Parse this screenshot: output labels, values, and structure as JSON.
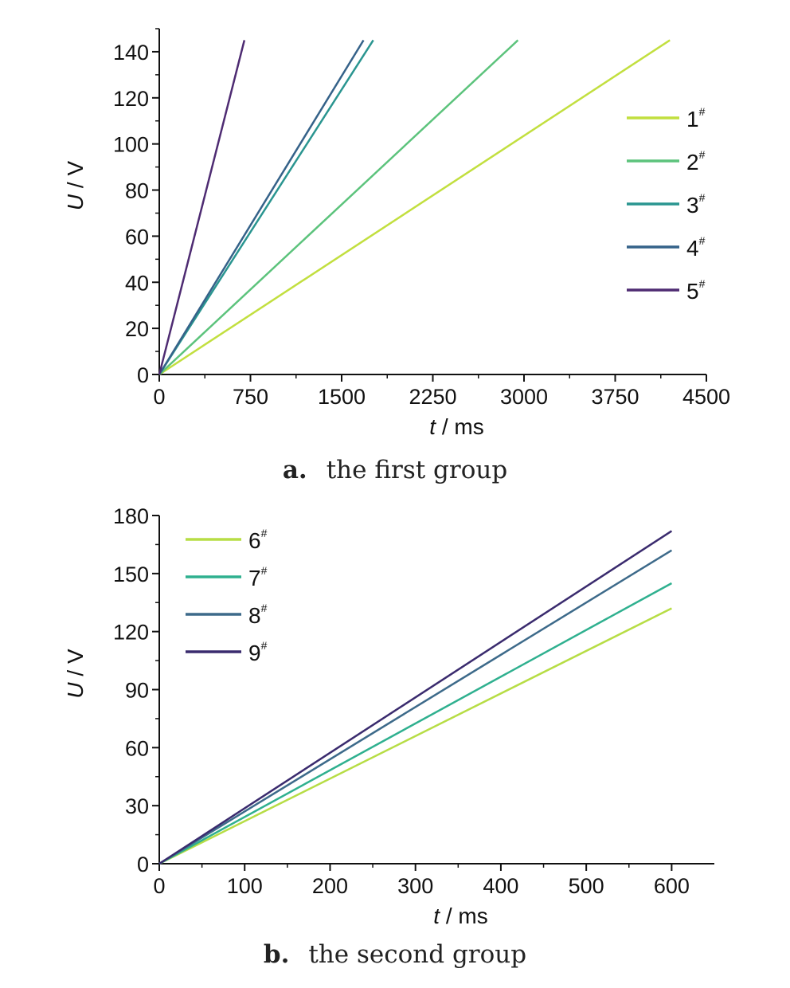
{
  "charts": [
    {
      "label": "a.",
      "caption": "the first group",
      "chart_data": {
        "type": "line",
        "xlabel_var": "t",
        "xlabel_unit": " / ms",
        "ylabel_var": "U",
        "ylabel_unit": " / V",
        "xlim": [
          0,
          4500
        ],
        "ylim": [
          0,
          150
        ],
        "xticks": [
          0,
          750,
          1500,
          2250,
          3000,
          3750,
          4500
        ],
        "yticks": [
          0,
          20,
          40,
          60,
          80,
          100,
          120,
          140
        ],
        "legend_position": "right",
        "series": [
          {
            "name": "1",
            "sup": "#",
            "color": "#c2df3f",
            "x": [
              0,
              4200
            ],
            "y": [
              0,
              145
            ]
          },
          {
            "name": "2",
            "sup": "#",
            "color": "#5cc37c",
            "x": [
              0,
              2950
            ],
            "y": [
              0,
              145
            ]
          },
          {
            "name": "3",
            "sup": "#",
            "color": "#2a9590",
            "x": [
              0,
              1760
            ],
            "y": [
              0,
              145
            ]
          },
          {
            "name": "4",
            "sup": "#",
            "color": "#356289",
            "x": [
              0,
              1680
            ],
            "y": [
              0,
              145
            ]
          },
          {
            "name": "5",
            "sup": "#",
            "color": "#4e2b72",
            "x": [
              0,
              700
            ],
            "y": [
              0,
              145
            ]
          }
        ]
      }
    },
    {
      "label": "b.",
      "caption": "the second group",
      "chart_data": {
        "type": "line",
        "xlabel_var": "t",
        "xlabel_unit": " / ms",
        "ylabel_var": "U",
        "ylabel_unit": " / V",
        "xlim": [
          0,
          650
        ],
        "ylim": [
          0,
          180
        ],
        "xticks": [
          0,
          100,
          200,
          300,
          400,
          500,
          600
        ],
        "yticks": [
          0,
          30,
          60,
          90,
          120,
          150,
          180
        ],
        "legend_position": "top-left",
        "series": [
          {
            "name": "6",
            "sup": "#",
            "color": "#b7dd45",
            "x": [
              0,
              600
            ],
            "y": [
              0,
              132
            ]
          },
          {
            "name": "7",
            "sup": "#",
            "color": "#2fb08f",
            "x": [
              0,
              600
            ],
            "y": [
              0,
              145
            ]
          },
          {
            "name": "8",
            "sup": "#",
            "color": "#3d6a8a",
            "x": [
              0,
              600
            ],
            "y": [
              0,
              162
            ]
          },
          {
            "name": "9",
            "sup": "#",
            "color": "#3a2b6e",
            "x": [
              0,
              600
            ],
            "y": [
              0,
              172
            ]
          }
        ]
      }
    }
  ]
}
